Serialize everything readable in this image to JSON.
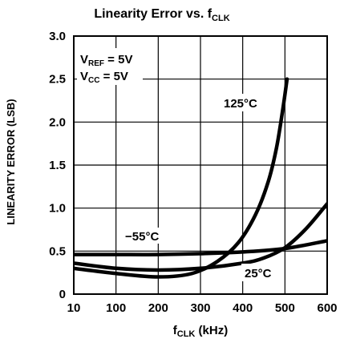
{
  "chart_data": {
    "type": "line",
    "title": {
      "main": "Linearity Error vs. f",
      "sub": "CLK"
    },
    "xlabel": {
      "main": "f",
      "sub": "CLK",
      "rest": " (kHz)"
    },
    "ylabel": "LINEARITY ERROR (LSB)",
    "x_ticks": [
      {
        "label": "10",
        "value": 10
      },
      {
        "label": "100",
        "value": 100
      },
      {
        "label": "200",
        "value": 200
      },
      {
        "label": "300",
        "value": 300
      },
      {
        "label": "400",
        "value": 400
      },
      {
        "label": "500",
        "value": 500
      },
      {
        "label": "600",
        "value": 600
      }
    ],
    "y_ticks": [
      "0",
      "0.5",
      "1.0",
      "1.5",
      "2.0",
      "2.5",
      "3.0"
    ],
    "xlim": [
      10,
      600
    ],
    "ylim": [
      0,
      3.0
    ],
    "grid": true,
    "conditions": [
      {
        "main": "V",
        "sub": "REF",
        "rest": " = 5V"
      },
      {
        "main": "V",
        "sub": "CC",
        "rest": " = 5V"
      }
    ],
    "series": [
      {
        "name": "125°C",
        "color": "#000000",
        "x": [
          10,
          100,
          200,
          280,
          340,
          390,
          430,
          460,
          480,
          495,
          505
        ],
        "y": [
          0.3,
          0.24,
          0.2,
          0.24,
          0.38,
          0.6,
          0.92,
          1.3,
          1.7,
          2.15,
          2.5
        ]
      },
      {
        "name": "25°C",
        "color": "#000000",
        "x": [
          10,
          100,
          200,
          300,
          400,
          450,
          500,
          550,
          600
        ],
        "y": [
          0.36,
          0.3,
          0.28,
          0.3,
          0.36,
          0.42,
          0.54,
          0.76,
          1.05
        ]
      },
      {
        "name": "−55°C",
        "color": "#000000",
        "x": [
          10,
          100,
          200,
          300,
          400,
          500,
          600
        ],
        "y": [
          0.46,
          0.46,
          0.46,
          0.47,
          0.49,
          0.53,
          0.62
        ]
      }
    ],
    "series_label_positions": [
      "upper-right of curve",
      "below curve near 500",
      "above curve near 150"
    ]
  }
}
